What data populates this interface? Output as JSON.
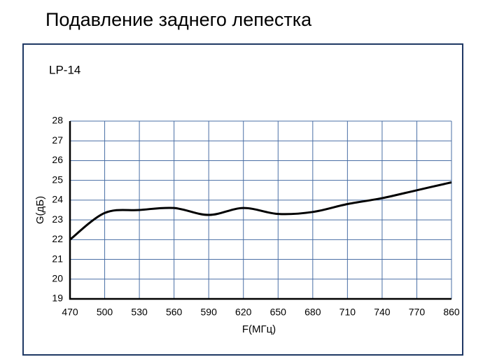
{
  "chart_data": {
    "type": "line",
    "title": "Подавление заднего лепестка",
    "subtitle": "LP-14",
    "x_label": "F(МГц)",
    "y_label": "G(дБ)",
    "categories": [
      470,
      500,
      530,
      560,
      590,
      620,
      650,
      680,
      710,
      740,
      770,
      860
    ],
    "series": [
      {
        "name": "LP-14",
        "color": "#000000",
        "values": [
          22.0,
          23.35,
          23.5,
          23.6,
          23.25,
          23.6,
          23.3,
          23.4,
          23.8,
          24.1,
          24.5,
          24.9
        ]
      }
    ],
    "ylim": [
      19,
      28
    ],
    "yticks": [
      19,
      20,
      21,
      22,
      23,
      24,
      25,
      26,
      27,
      28
    ],
    "grid": true,
    "grid_color": "#4a6fa5"
  }
}
